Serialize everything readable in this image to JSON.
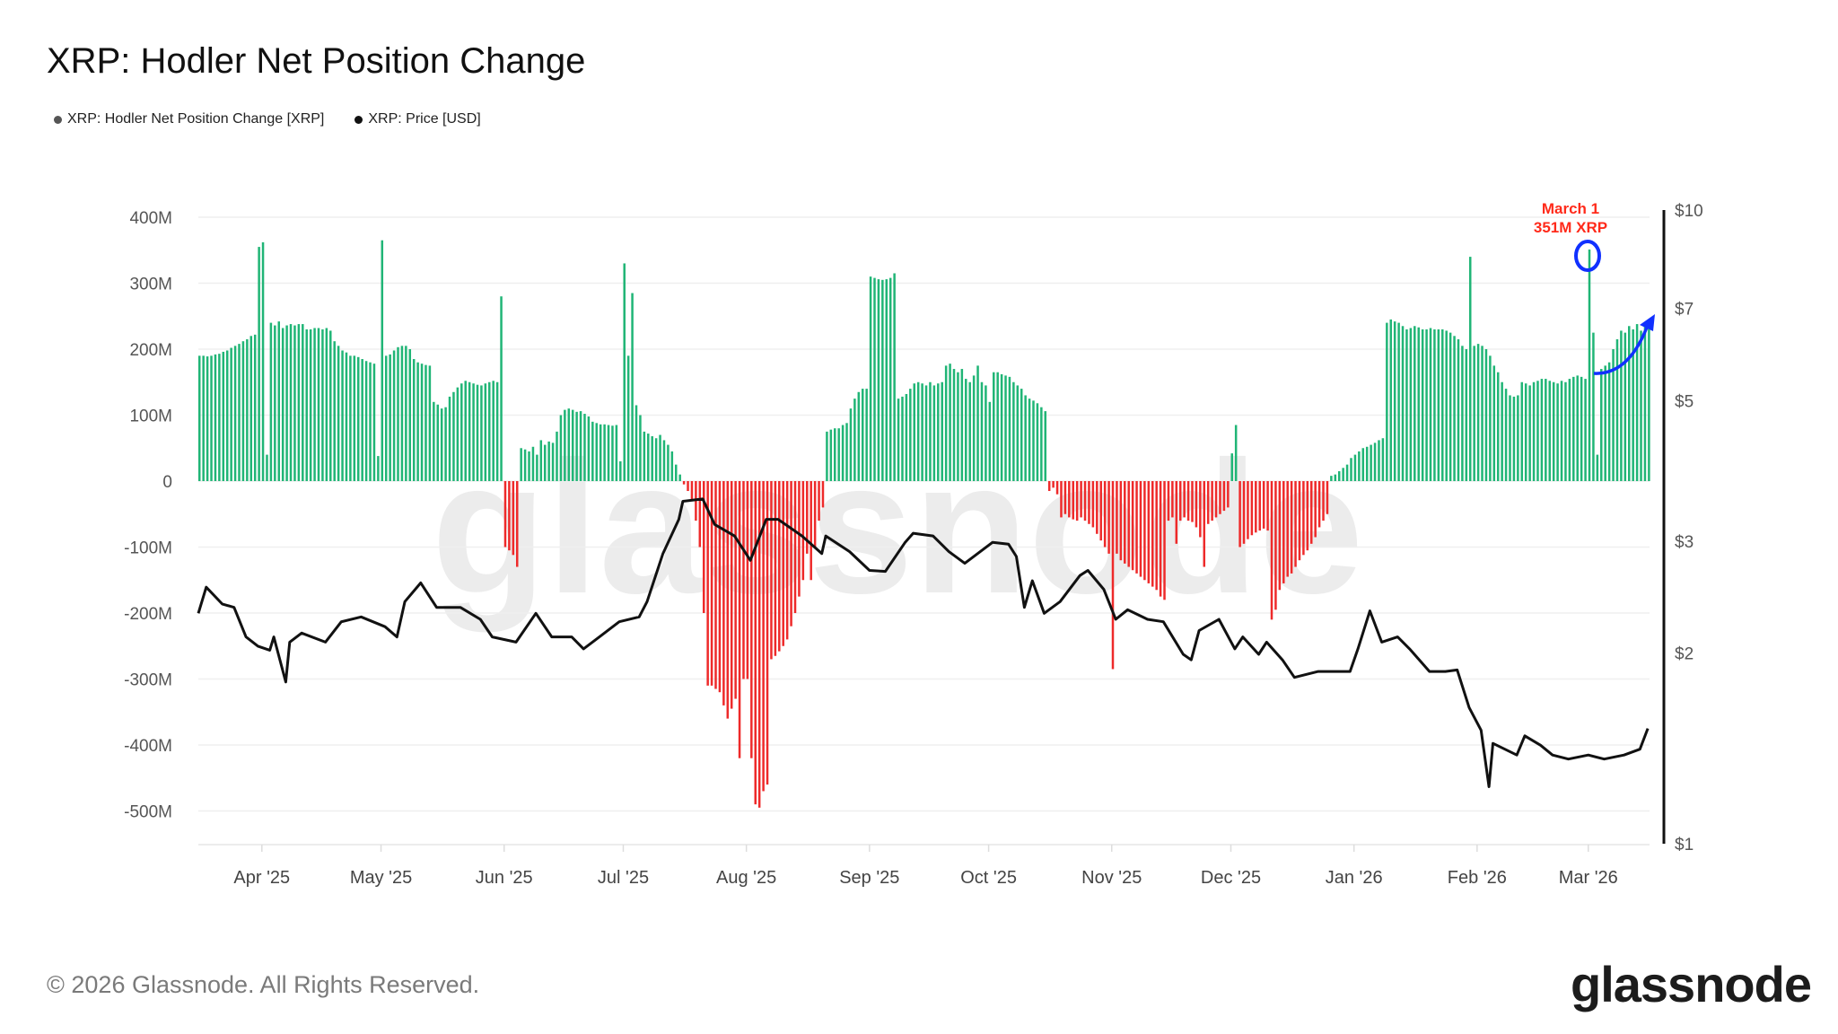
{
  "title": "XRP: Hodler Net Position Change",
  "legend": [
    {
      "label": "XRP: Hodler Net Position Change [XRP]",
      "color": "#555555"
    },
    {
      "label": "XRP: Price [USD]",
      "color": "#111111"
    }
  ],
  "footer": "© 2026 Glassnode. All Rights Reserved.",
  "logo": "glassnode",
  "watermark": "glassnode",
  "chart_data": {
    "type": "bar+line",
    "left_axis": {
      "unit": "XRP",
      "ylim_millions": [
        -550,
        400
      ],
      "ticks": [
        {
          "v": 400,
          "label": "400M"
        },
        {
          "v": 300,
          "label": "300M"
        },
        {
          "v": 200,
          "label": "200M"
        },
        {
          "v": 100,
          "label": "100M"
        },
        {
          "v": 0,
          "label": "0"
        },
        {
          "v": -100,
          "label": "-100M"
        },
        {
          "v": -200,
          "label": "-200M"
        },
        {
          "v": -300,
          "label": "-300M"
        },
        {
          "v": -400,
          "label": "-400M"
        },
        {
          "v": -500,
          "label": "-500M"
        }
      ]
    },
    "right_axis": {
      "scale": "log",
      "unit": "USD",
      "ylim": [
        1,
        10
      ],
      "ticks": [
        {
          "v": 10,
          "label": "$10"
        },
        {
          "v": 7,
          "label": "$7"
        },
        {
          "v": 5,
          "label": "$5"
        },
        {
          "v": 3,
          "label": "$3"
        },
        {
          "v": 2,
          "label": "$2"
        },
        {
          "v": 1,
          "label": "$1"
        }
      ]
    },
    "x_ticks": [
      {
        "date": "2025-04-01",
        "label": "Apr '25"
      },
      {
        "date": "2025-05-01",
        "label": "May '25"
      },
      {
        "date": "2025-06-01",
        "label": "Jun '25"
      },
      {
        "date": "2025-07-01",
        "label": "Jul '25"
      },
      {
        "date": "2025-08-01",
        "label": "Aug '25"
      },
      {
        "date": "2025-09-01",
        "label": "Sep '25"
      },
      {
        "date": "2025-10-01",
        "label": "Oct '25"
      },
      {
        "date": "2025-11-01",
        "label": "Nov '25"
      },
      {
        "date": "2025-12-01",
        "label": "Dec '25"
      },
      {
        "date": "2026-01-01",
        "label": "Jan '26"
      },
      {
        "date": "2026-02-01",
        "label": "Feb '26"
      },
      {
        "date": "2026-03-01",
        "label": "Mar '26"
      }
    ],
    "grid": true,
    "colors": {
      "positive": "#20b576",
      "negative": "#ee2a2a",
      "price": "#111111",
      "annotation": "#ff2a1a",
      "highlight": "#1030ff"
    },
    "net_position_change_millions_daily": [
      {
        "month": "2025-03",
        "first_day": 16,
        "values": [
          190,
          190,
          189,
          190,
          192,
          193,
          196,
          198,
          202,
          205,
          208,
          212,
          215,
          220,
          222,
          355
        ]
      },
      {
        "month": "2025-04",
        "first_day": 1,
        "values": [
          362,
          40,
          240,
          236,
          242,
          232,
          236,
          238,
          236,
          238,
          238,
          230,
          230,
          232,
          232,
          230,
          232,
          228,
          212,
          205,
          198,
          195,
          190,
          190,
          188,
          185,
          182,
          180,
          178,
          38
        ]
      },
      {
        "month": "2025-05",
        "first_day": 1,
        "values": [
          365,
          190,
          192,
          198,
          203,
          205,
          205,
          200,
          185,
          180,
          178,
          176,
          175,
          120,
          116,
          110,
          112,
          128,
          135,
          142,
          148,
          152,
          150,
          148,
          146,
          145,
          148,
          150,
          152,
          150,
          280
        ]
      },
      {
        "month": "2025-06",
        "first_day": 1,
        "values": [
          -100,
          -105,
          -112,
          -130,
          50,
          48,
          45,
          52,
          40,
          62,
          55,
          60,
          58,
          75,
          100,
          108,
          110,
          108,
          105,
          106,
          102,
          98,
          90,
          88,
          86,
          86,
          85,
          84,
          85,
          30
        ]
      },
      {
        "month": "2025-07",
        "first_day": 1,
        "values": [
          330,
          190,
          285,
          115,
          100,
          75,
          72,
          68,
          65,
          70,
          62,
          55,
          45,
          25,
          10,
          -5,
          -15,
          -30,
          -60,
          -100,
          -200,
          -310,
          -310,
          -315,
          -320,
          -340,
          -360,
          -345,
          -330,
          -420,
          -300
        ]
      },
      {
        "month": "2025-08",
        "first_day": 1,
        "values": [
          -300,
          -420,
          -490,
          -495,
          -470,
          -460,
          -270,
          -265,
          -258,
          -250,
          -240,
          -220,
          -200,
          -175,
          -150,
          -110,
          -150,
          -100,
          -60,
          -40,
          75,
          78,
          80,
          80,
          85,
          88,
          110,
          125,
          135,
          140,
          140
        ]
      },
      {
        "month": "2025-09",
        "first_day": 1,
        "values": [
          310,
          308,
          306,
          305,
          306,
          308,
          315,
          125,
          128,
          132,
          140,
          148,
          150,
          148,
          145,
          150,
          145,
          148,
          150,
          175,
          178,
          170,
          165,
          170,
          155,
          150,
          160,
          175,
          150,
          145
        ]
      },
      {
        "month": "2025-10",
        "first_day": 1,
        "values": [
          120,
          165,
          165,
          162,
          160,
          158,
          150,
          145,
          140,
          130,
          125,
          122,
          118,
          112,
          106,
          -15,
          -10,
          -20,
          -55,
          -50,
          -55,
          -58,
          -60,
          -55,
          -60,
          -65,
          -70,
          -80,
          -90,
          -100,
          -110
        ]
      },
      {
        "month": "2025-11",
        "first_day": 1,
        "values": [
          -285,
          -110,
          -120,
          -125,
          -130,
          -135,
          -140,
          -145,
          -150,
          -155,
          -160,
          -165,
          -175,
          -180,
          -60,
          -55,
          -95,
          -60,
          -55,
          -60,
          -62,
          -70,
          -85,
          -130,
          -65,
          -60,
          -55,
          -50,
          -45,
          -40
        ]
      },
      {
        "month": "2025-12",
        "first_day": 1,
        "values": [
          42,
          85,
          -100,
          -95,
          -88,
          -82,
          -78,
          -75,
          -72,
          -75,
          -210,
          -195,
          -165,
          -155,
          -145,
          -140,
          -130,
          -120,
          -112,
          -105,
          -95,
          -85,
          -70,
          -60,
          -50,
          8,
          10,
          15,
          20,
          25,
          35
        ]
      },
      {
        "month": "2026-01",
        "first_day": 1,
        "values": [
          40,
          45,
          50,
          52,
          55,
          58,
          62,
          65,
          240,
          245,
          242,
          240,
          235,
          230,
          232,
          235,
          233,
          230,
          230,
          232,
          230,
          230,
          230,
          228,
          225,
          220,
          215,
          205,
          200,
          340,
          205
        ]
      },
      {
        "month": "2026-02",
        "first_day": 1,
        "values": [
          208,
          205,
          200,
          190,
          175,
          165,
          150,
          140,
          130,
          128,
          130,
          150,
          148,
          145,
          150,
          152,
          155,
          155,
          152,
          150,
          148,
          152,
          150,
          155,
          158,
          160,
          158,
          155
        ]
      },
      {
        "month": "2026-03",
        "first_day": 1,
        "values": [
          351,
          225,
          40,
          170,
          175,
          180,
          200,
          215,
          228,
          225,
          235,
          230,
          238,
          228,
          240,
          242
        ]
      }
    ],
    "price_usd": [
      [
        "2025-03-16",
        2.31
      ],
      [
        "2025-03-18",
        2.54
      ],
      [
        "2025-03-22",
        2.39
      ],
      [
        "2025-03-25",
        2.36
      ],
      [
        "2025-03-28",
        2.12
      ],
      [
        "2025-03-31",
        2.05
      ],
      [
        "2025-04-03",
        2.02
      ],
      [
        "2025-04-04",
        2.12
      ],
      [
        "2025-04-07",
        1.8
      ],
      [
        "2025-04-08",
        2.08
      ],
      [
        "2025-04-11",
        2.15
      ],
      [
        "2025-04-17",
        2.08
      ],
      [
        "2025-04-21",
        2.24
      ],
      [
        "2025-04-26",
        2.28
      ],
      [
        "2025-05-02",
        2.2
      ],
      [
        "2025-05-05",
        2.12
      ],
      [
        "2025-05-07",
        2.41
      ],
      [
        "2025-05-11",
        2.58
      ],
      [
        "2025-05-15",
        2.36
      ],
      [
        "2025-05-21",
        2.36
      ],
      [
        "2025-05-26",
        2.26
      ],
      [
        "2025-05-29",
        2.12
      ],
      [
        "2025-06-04",
        2.08
      ],
      [
        "2025-06-09",
        2.31
      ],
      [
        "2025-06-13",
        2.12
      ],
      [
        "2025-06-18",
        2.12
      ],
      [
        "2025-06-21",
        2.03
      ],
      [
        "2025-06-25",
        2.12
      ],
      [
        "2025-06-30",
        2.24
      ],
      [
        "2025-07-05",
        2.28
      ],
      [
        "2025-07-07",
        2.41
      ],
      [
        "2025-07-11",
        2.87
      ],
      [
        "2025-07-15",
        3.25
      ],
      [
        "2025-07-16",
        3.47
      ],
      [
        "2025-07-21",
        3.5
      ],
      [
        "2025-07-24",
        3.19
      ],
      [
        "2025-07-29",
        3.06
      ],
      [
        "2025-08-02",
        2.8
      ],
      [
        "2025-08-06",
        3.25
      ],
      [
        "2025-08-09",
        3.25
      ],
      [
        "2025-08-15",
        3.06
      ],
      [
        "2025-08-20",
        2.87
      ],
      [
        "2025-08-21",
        3.06
      ],
      [
        "2025-08-27",
        2.89
      ],
      [
        "2025-09-01",
        2.7
      ],
      [
        "2025-09-05",
        2.69
      ],
      [
        "2025-09-10",
        2.99
      ],
      [
        "2025-09-12",
        3.09
      ],
      [
        "2025-09-17",
        3.06
      ],
      [
        "2025-09-21",
        2.89
      ],
      [
        "2025-09-25",
        2.77
      ],
      [
        "2025-10-02",
        2.99
      ],
      [
        "2025-10-06",
        2.97
      ],
      [
        "2025-10-08",
        2.84
      ],
      [
        "2025-10-10",
        2.36
      ],
      [
        "2025-10-12",
        2.6
      ],
      [
        "2025-10-15",
        2.31
      ],
      [
        "2025-10-19",
        2.41
      ],
      [
        "2025-10-24",
        2.65
      ],
      [
        "2025-10-26",
        2.7
      ],
      [
        "2025-10-30",
        2.52
      ],
      [
        "2025-11-02",
        2.26
      ],
      [
        "2025-11-05",
        2.34
      ],
      [
        "2025-11-10",
        2.26
      ],
      [
        "2025-11-14",
        2.24
      ],
      [
        "2025-11-19",
        1.99
      ],
      [
        "2025-11-21",
        1.95
      ],
      [
        "2025-11-23",
        2.17
      ],
      [
        "2025-11-28",
        2.26
      ],
      [
        "2025-12-02",
        2.03
      ],
      [
        "2025-12-04",
        2.12
      ],
      [
        "2025-12-08",
        1.99
      ],
      [
        "2025-12-10",
        2.08
      ],
      [
        "2025-12-14",
        1.95
      ],
      [
        "2025-12-17",
        1.83
      ],
      [
        "2025-12-23",
        1.87
      ],
      [
        "2025-12-28",
        1.87
      ],
      [
        "2025-12-31",
        1.87
      ],
      [
        "2026-01-02",
        2.03
      ],
      [
        "2026-01-05",
        2.33
      ],
      [
        "2026-01-08",
        2.08
      ],
      [
        "2026-01-12",
        2.12
      ],
      [
        "2026-01-15",
        2.03
      ],
      [
        "2026-01-20",
        1.87
      ],
      [
        "2026-01-24",
        1.87
      ],
      [
        "2026-01-27",
        1.88
      ],
      [
        "2026-01-30",
        1.64
      ],
      [
        "2026-02-02",
        1.51
      ],
      [
        "2026-02-04",
        1.23
      ],
      [
        "2026-02-05",
        1.44
      ],
      [
        "2026-02-11",
        1.38
      ],
      [
        "2026-02-13",
        1.48
      ],
      [
        "2026-02-17",
        1.43
      ],
      [
        "2026-02-20",
        1.38
      ],
      [
        "2026-02-24",
        1.36
      ],
      [
        "2026-03-01",
        1.38
      ],
      [
        "2026-03-05",
        1.36
      ],
      [
        "2026-03-10",
        1.38
      ],
      [
        "2026-03-14",
        1.41
      ],
      [
        "2026-03-16",
        1.52
      ]
    ],
    "annotation": {
      "line1": "March 1",
      "line2": "351M XRP",
      "date": "2026-03-01",
      "value_millions": 351
    }
  }
}
